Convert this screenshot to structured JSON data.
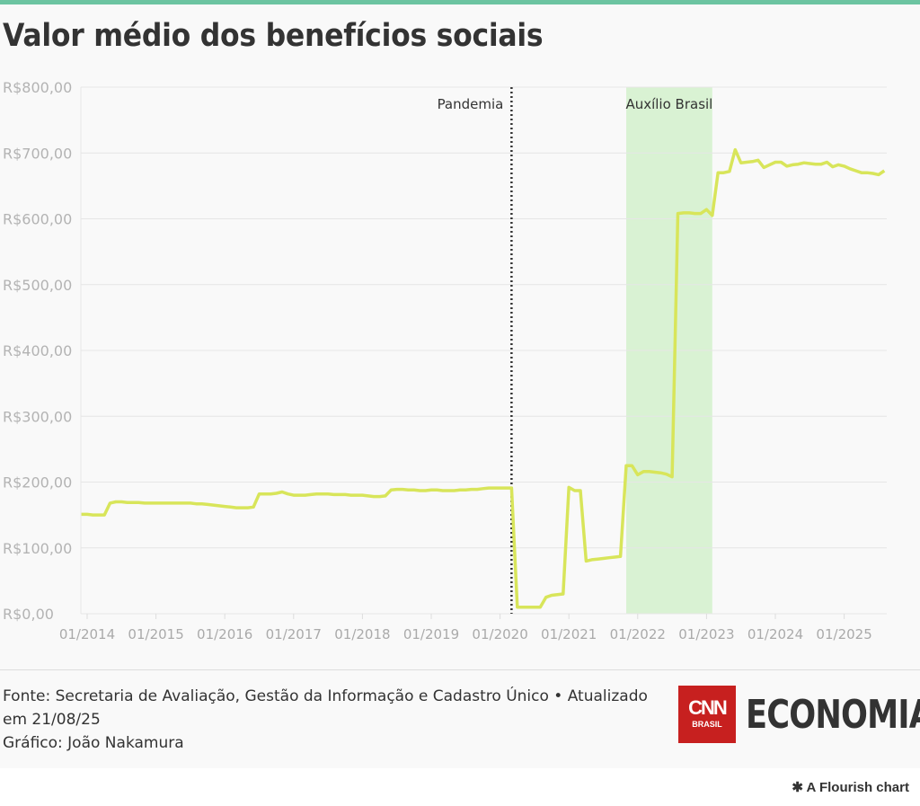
{
  "header": {
    "title": "Valor médio dos benefícios sociais"
  },
  "chart_data": {
    "type": "line",
    "title": "Valor médio dos benefícios sociais",
    "xlabel": "",
    "ylabel": "",
    "start_month": "12/2013",
    "series": [
      {
        "name": "Valor médio",
        "color": "#d8e55a",
        "values": [
          151,
          151,
          150,
          150,
          150,
          168,
          170,
          170,
          169,
          169,
          169,
          168,
          168,
          168,
          168,
          168,
          168,
          168,
          168,
          168,
          167,
          167,
          166,
          165,
          164,
          163,
          162,
          161,
          161,
          161,
          162,
          182,
          182,
          182,
          183,
          185,
          182,
          180,
          180,
          180,
          181,
          182,
          182,
          182,
          181,
          181,
          181,
          180,
          180,
          180,
          179,
          178,
          178,
          179,
          188,
          189,
          189,
          188,
          188,
          187,
          187,
          188,
          188,
          187,
          187,
          187,
          188,
          188,
          189,
          189,
          190,
          191,
          191,
          191,
          191,
          191,
          10,
          10,
          10,
          10,
          10,
          25,
          28,
          29,
          30,
          192,
          187,
          187,
          80,
          82,
          83,
          84,
          85,
          86,
          87,
          225,
          225,
          211,
          216,
          216,
          215,
          214,
          212,
          208,
          608,
          609,
          609,
          608,
          608,
          614,
          605,
          670,
          670,
          672,
          705,
          685,
          686,
          687,
          689,
          678,
          682,
          686,
          686,
          680,
          682,
          683,
          685,
          684,
          683,
          683,
          686,
          679,
          682,
          680,
          676,
          673,
          670,
          670,
          669,
          667,
          673
        ]
      }
    ],
    "ylim": [
      0,
      800
    ],
    "y_ticks": [
      {
        "v": 0,
        "label": "R$0,00"
      },
      {
        "v": 100,
        "label": "R$100,00"
      },
      {
        "v": 200,
        "label": "R$200,00"
      },
      {
        "v": 300,
        "label": "R$300,00"
      },
      {
        "v": 400,
        "label": "R$400,00"
      },
      {
        "v": 500,
        "label": "R$500,00"
      },
      {
        "v": 600,
        "label": "R$600,00"
      },
      {
        "v": 700,
        "label": "R$700,00"
      },
      {
        "v": 800,
        "label": "R$800,00"
      }
    ],
    "x_ticks": [
      "01/2014",
      "01/2015",
      "01/2016",
      "01/2017",
      "01/2018",
      "01/2019",
      "01/2020",
      "01/2021",
      "01/2022",
      "01/2023",
      "01/2024",
      "01/2025"
    ],
    "annotations": {
      "line": {
        "label": "Pandemia",
        "at": "03/2020"
      },
      "band": {
        "label": "Auxílio Brasil",
        "from": "11/2021",
        "to": "02/2023",
        "color": "#d9f2d3"
      }
    },
    "grid": true
  },
  "footer": {
    "source": "Fonte: Secretaria de Avaliação, Gestão da Informação e Cadastro Único • Atualizado em 21/08/25",
    "credit": "Gráfico: João Nakamura"
  },
  "logos": {
    "cnn": "CNN",
    "cnn_sub": "BRASIL",
    "economia": "ECONOMIA"
  },
  "flourish": "A Flourish chart"
}
